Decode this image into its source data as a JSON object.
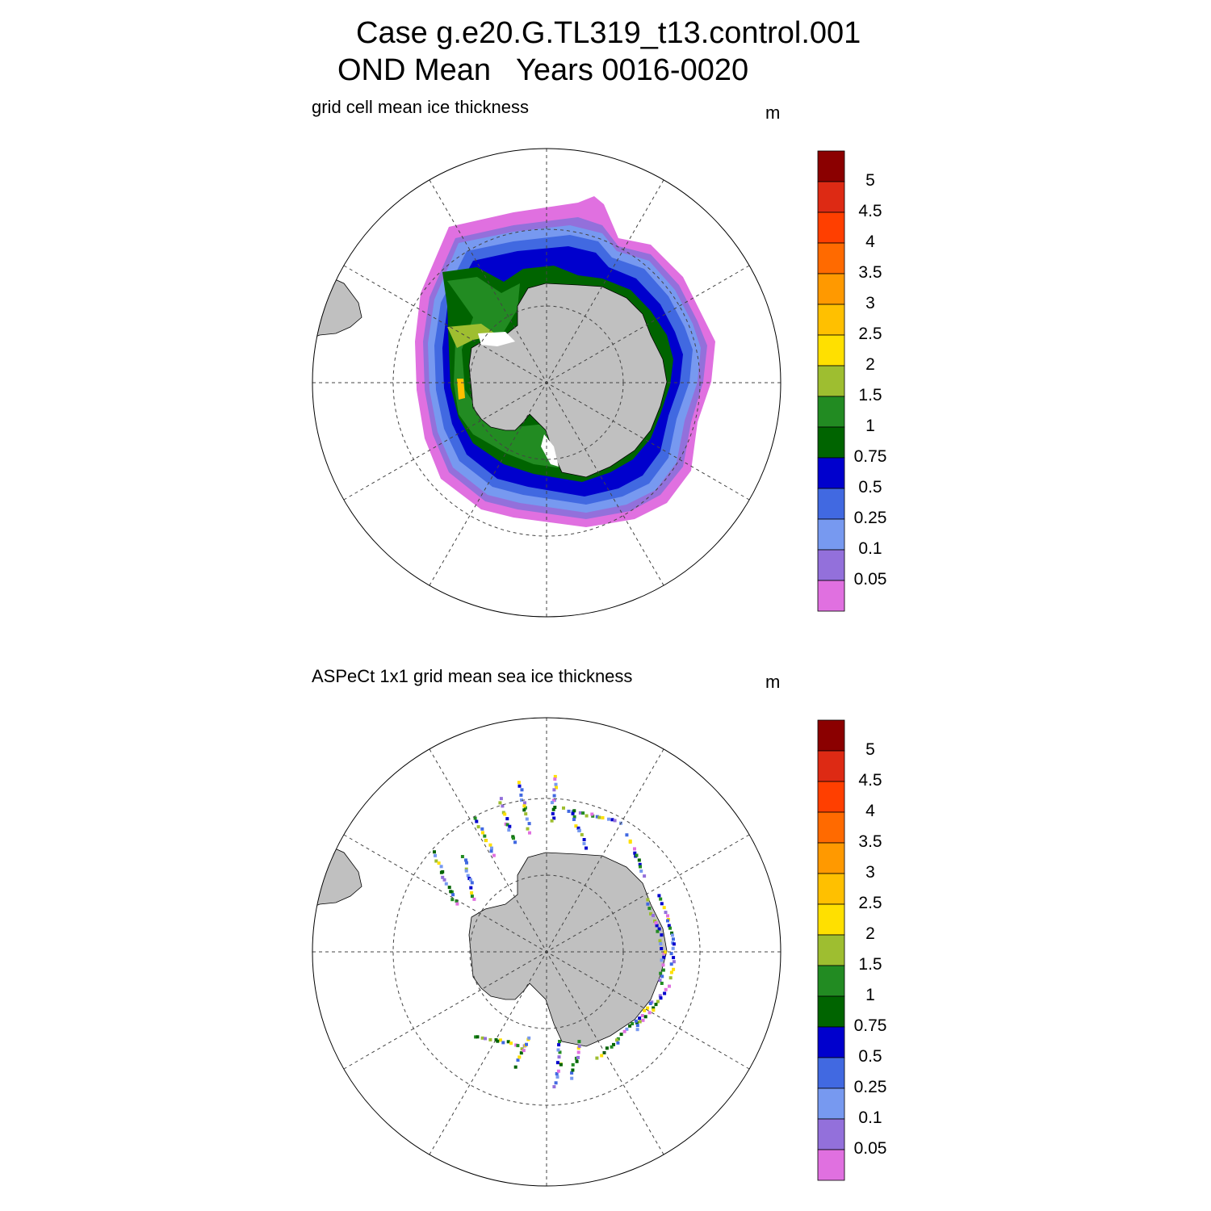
{
  "title": {
    "line1": "Case g.e20.G.TL319_t13.control.001",
    "line2": "OND Mean   Years 0016-0020"
  },
  "panels": [
    {
      "subtitle": "grid cell mean ice thickness",
      "unit": "m"
    },
    {
      "subtitle": "ASPeCt 1x1 grid mean sea ice thickness",
      "unit": "m"
    }
  ],
  "colorbar": {
    "labels": [
      "5",
      "4.5",
      "4",
      "3.5",
      "3",
      "2.5",
      "2",
      "1.5",
      "1",
      "0.75",
      "0.5",
      "0.25",
      "0.1",
      "0.05"
    ],
    "colors_top_to_bottom": [
      "#8b0000",
      "#dd2a14",
      "#ff3f00",
      "#ff6a00",
      "#ff9900",
      "#ffc000",
      "#ffe000",
      "#9ebe30",
      "#228b22",
      "#006400",
      "#0000cd",
      "#4169e1",
      "#7799f0",
      "#9370db",
      "#e070e0"
    ]
  },
  "map": {
    "projection": "south polar stereographic",
    "land_color": "#c0c0c0",
    "grid": "dashed meridians every 30° and latitude circles"
  }
}
